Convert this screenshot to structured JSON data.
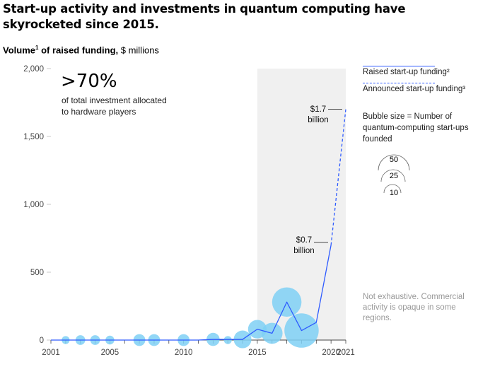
{
  "header": {
    "title": "Start-up activity and investments in quantum computing have skyrocketed since 2015.",
    "subtitle_bold": "Volume",
    "subtitle_sup": "1",
    "subtitle_bold2": " of raised funding,",
    "subtitle_rest": " $ millions"
  },
  "legend": {
    "raised": "Raised start-up funding²",
    "announced": "Announced start-up funding³",
    "bubble_title": "Bubble size = Number of quantum-computing start-ups founded",
    "bubble_values": [
      "50",
      "25",
      "10"
    ]
  },
  "callout": {
    "big": ">70%",
    "small": "of total investment allocated to hardware players"
  },
  "annotations": {
    "a1_value": "$1.7",
    "a1_unit": "billion",
    "a2_value": "$0.7",
    "a2_unit": "billion"
  },
  "note": "Not exhaustive. Commercial activity is opaque in some regions.",
  "colors": {
    "line": "#2e5bff",
    "bubble": "#7fd0f5",
    "shade": "#f0f0f0",
    "axis": "#444444"
  },
  "chart_data": {
    "type": "line",
    "xlim": [
      2001,
      2021
    ],
    "ylim": [
      0,
      2000
    ],
    "x_ticks": [
      "2001",
      "2005",
      "2010",
      "2015",
      "2020",
      "2021"
    ],
    "y_ticks": [
      "0",
      "500",
      "1,000",
      "1,500",
      "2,000"
    ],
    "shaded_range": [
      2015,
      2021
    ],
    "series": [
      {
        "name": "Raised start-up funding²",
        "style": "solid",
        "x": [
          2001,
          2002,
          2003,
          2004,
          2005,
          2006,
          2007,
          2008,
          2009,
          2010,
          2011,
          2012,
          2013,
          2014,
          2015,
          2016,
          2017,
          2018,
          2019,
          2020
        ],
        "y": [
          0,
          0,
          0,
          0,
          0,
          0,
          0,
          0,
          0,
          0,
          0,
          5,
          5,
          5,
          80,
          50,
          280,
          70,
          130,
          700
        ]
      },
      {
        "name": "Announced start-up funding³",
        "style": "dashed",
        "x": [
          2020,
          2021
        ],
        "y": [
          700,
          1700
        ]
      }
    ],
    "bubbles": {
      "x": [
        2002,
        2003,
        2004,
        2005,
        2007,
        2008,
        2010,
        2012,
        2013,
        2014,
        2015,
        2016,
        2017,
        2018
      ],
      "y": [
        0,
        0,
        0,
        0,
        0,
        0,
        0,
        5,
        0,
        5,
        80,
        50,
        280,
        70
      ],
      "size": [
        4,
        6,
        6,
        5,
        9,
        9,
        9,
        11,
        4,
        20,
        22,
        28,
        55,
        75
      ]
    }
  }
}
